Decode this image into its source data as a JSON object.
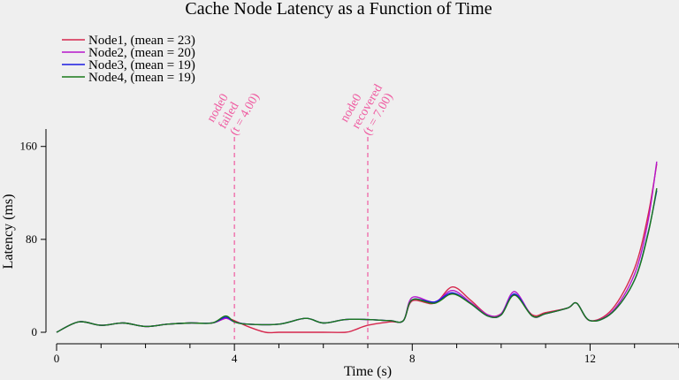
{
  "chart_data": {
    "type": "line",
    "title": "Cache Node Latency as a Function of Time",
    "xlabel": "Time (s)",
    "ylabel": "Latency (ms)",
    "xlim": [
      0,
      14
    ],
    "ylim": [
      0,
      175
    ],
    "x_ticks": [
      0,
      4,
      8,
      12
    ],
    "x_minor_ticks": [
      1,
      2,
      3,
      5,
      6,
      7,
      9,
      10,
      11,
      13,
      14
    ],
    "y_ticks": [
      0,
      80,
      160
    ],
    "grid": false,
    "legend_position": "top-left",
    "series": [
      {
        "name": "Node1, (mean = 23)",
        "color": "#d6274d",
        "x": [
          0,
          0.5,
          1,
          1.5,
          2,
          2.5,
          3,
          3.5,
          3.8,
          4,
          4.3,
          4.7,
          5,
          5.5,
          6,
          6.5,
          6.7,
          7,
          7.5,
          7.8,
          8,
          8.5,
          8.9,
          9.3,
          9.7,
          10,
          10.3,
          10.7,
          11,
          11.5,
          11.7,
          12,
          12.5,
          13,
          13.3,
          13.5
        ],
        "y": [
          0,
          9,
          6,
          8,
          5,
          7,
          8,
          8,
          12,
          10,
          5,
          0,
          0,
          0,
          0,
          0,
          2,
          6,
          9,
          10,
          27,
          25,
          39,
          28,
          15,
          16,
          32,
          15,
          17,
          21,
          25,
          10,
          20,
          55,
          100,
          145
        ]
      },
      {
        "name": "Node2, (mean = 20)",
        "color": "#b517cc",
        "x": [
          0,
          0.5,
          1,
          1.5,
          2,
          2.5,
          3,
          3.5,
          3.8,
          4,
          4.3,
          5,
          5.6,
          6,
          6.5,
          7,
          7.5,
          7.8,
          8,
          8.5,
          8.9,
          9.3,
          9.7,
          10,
          10.3,
          10.7,
          11,
          11.5,
          11.7,
          12,
          12.5,
          13,
          13.3,
          13.5
        ],
        "y": [
          0,
          9,
          6,
          8,
          5,
          7,
          8,
          8,
          12,
          9,
          7,
          7,
          12,
          8,
          11,
          11,
          10,
          10,
          30,
          26,
          36,
          26,
          15,
          16,
          35,
          14,
          16,
          21,
          25,
          10,
          18,
          50,
          95,
          147
        ]
      },
      {
        "name": "Node3, (mean = 19)",
        "color": "#1a1ae0",
        "x": [
          0,
          0.5,
          1,
          1.5,
          2,
          2.5,
          3,
          3.5,
          3.8,
          4,
          4.3,
          5,
          5.6,
          6,
          6.5,
          7,
          7.5,
          7.8,
          8,
          8.5,
          8.9,
          9.3,
          9.7,
          10,
          10.3,
          10.7,
          11,
          11.5,
          11.7,
          12,
          12.5,
          13,
          13.3,
          13.5
        ],
        "y": [
          0,
          9,
          6,
          8,
          5,
          7,
          8,
          8,
          13,
          9,
          7,
          7,
          12,
          8,
          11,
          11,
          10,
          10,
          28,
          26,
          34,
          25,
          14,
          15,
          33,
          14,
          16,
          21,
          25,
          10,
          17,
          45,
          85,
          122
        ]
      },
      {
        "name": "Node4, (mean = 19)",
        "color": "#1a7a1a",
        "x": [
          0,
          0.5,
          1,
          1.5,
          2,
          2.5,
          3,
          3.5,
          3.8,
          4,
          4.3,
          5,
          5.6,
          6,
          6.5,
          7,
          7.5,
          7.8,
          8,
          8.5,
          8.9,
          9.3,
          9.7,
          10,
          10.3,
          10.7,
          11,
          11.5,
          11.7,
          12,
          12.5,
          13,
          13.3,
          13.5
        ],
        "y": [
          0,
          9,
          6,
          8,
          5,
          7,
          8,
          8,
          14,
          9,
          7,
          7,
          12,
          8,
          11,
          11,
          10,
          10,
          28,
          25,
          33,
          25,
          14,
          15,
          32,
          14,
          16,
          21,
          25,
          10,
          17,
          45,
          84,
          124
        ]
      }
    ],
    "annotations": [
      {
        "x": 4,
        "lines": [
          "node0",
          "failed",
          "(t = 4.00)"
        ],
        "color": "#ef5aa0"
      },
      {
        "x": 7,
        "lines": [
          "node0",
          "recovered",
          "(t = 7.00)"
        ],
        "color": "#ef5aa0"
      }
    ]
  }
}
